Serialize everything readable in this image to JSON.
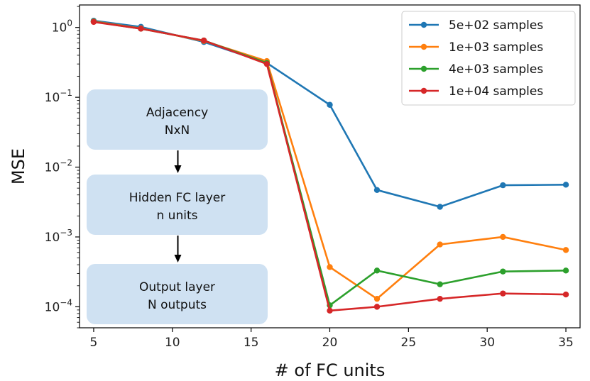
{
  "chart_data": {
    "type": "line",
    "xlabel": "# of FC units",
    "ylabel": "MSE",
    "yscale": "log",
    "xlim": [
      4.1,
      35.9
    ],
    "ylim": [
      5e-05,
      2.1
    ],
    "x_ticks": [
      5,
      10,
      15,
      20,
      25,
      30,
      35
    ],
    "y_ticks": [
      {
        "value": 1,
        "label": "10",
        "exp": "0"
      },
      {
        "value": 0.1,
        "label": "10",
        "exp": "−1"
      },
      {
        "value": 0.01,
        "label": "10",
        "exp": "−2"
      },
      {
        "value": 0.001,
        "label": "10",
        "exp": "−3"
      },
      {
        "value": 0.0001,
        "label": "10",
        "exp": "−4"
      }
    ],
    "grid": false,
    "legend_position": "top-right",
    "x": [
      5,
      8,
      12,
      16,
      20,
      23,
      27,
      31,
      35
    ],
    "series": [
      {
        "name": "5e+02 samples",
        "color": "#1f77b4",
        "values": [
          1.25,
          1.02,
          0.62,
          0.31,
          0.078,
          0.0047,
          0.0027,
          0.0055,
          0.0056
        ]
      },
      {
        "name": "1e+03 samples",
        "color": "#ff7f0e",
        "values": [
          1.22,
          0.97,
          0.64,
          0.33,
          0.00037,
          0.00013,
          0.00078,
          0.001,
          0.00065
        ]
      },
      {
        "name": "4e+03 samples",
        "color": "#2ca02c",
        "values": [
          1.21,
          0.96,
          0.65,
          0.31,
          0.000105,
          0.00033,
          0.00021,
          0.00032,
          0.00033
        ]
      },
      {
        "name": "1e+04 samples",
        "color": "#d62728",
        "values": [
          1.2,
          0.96,
          0.65,
          0.3,
          8.8e-05,
          0.0001,
          0.00013,
          0.000155,
          0.00015
        ]
      }
    ],
    "annotation_boxes": [
      {
        "line1": "Adjacency",
        "line2": "NxN"
      },
      {
        "line1": "Hidden FC layer",
        "line2": "n units"
      },
      {
        "line1": "Output layer",
        "line2": "N outputs"
      }
    ],
    "box_color": "#cfe1f2"
  }
}
